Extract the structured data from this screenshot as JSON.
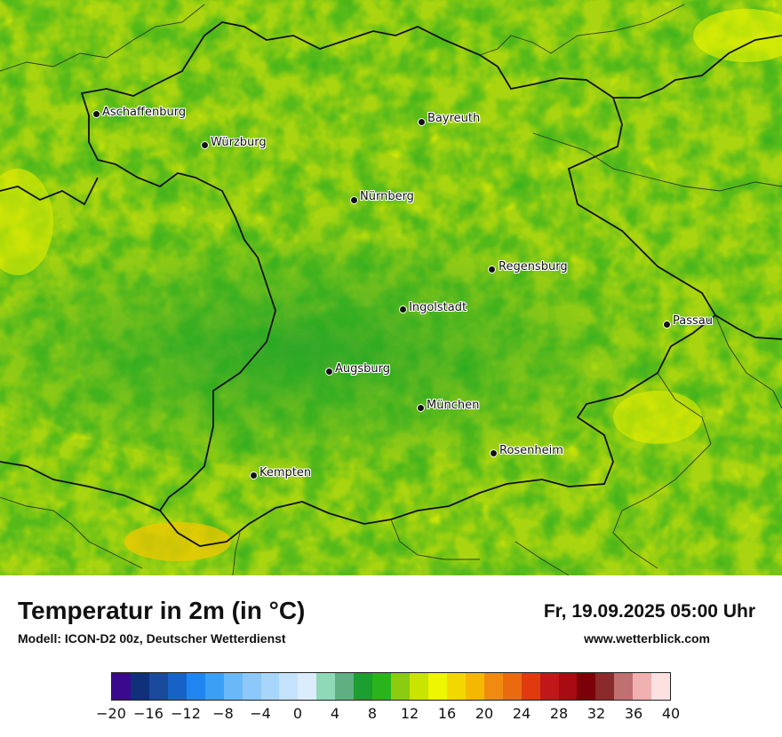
{
  "title": "Temperatur in 2m (in °C)",
  "model": "Modell: ICON-D2 00z, Deutscher Wetterdienst",
  "datetime": "Fr, 19.09.2025 05:00 Uhr",
  "website": "www.wetterblick.com",
  "legend": {
    "min": -20,
    "max": 40,
    "tick_labels": [
      "−20",
      "−16",
      "−12",
      "−8",
      "−4",
      "0",
      "4",
      "8",
      "12",
      "16",
      "20",
      "24",
      "28",
      "32",
      "36",
      "40"
    ],
    "colors": [
      "#3a0a8c",
      "#10307a",
      "#1a4a9c",
      "#1763c5",
      "#1f86f0",
      "#3aa0f5",
      "#6ab8f8",
      "#8cc8f9",
      "#a8d6fb",
      "#c4e2fc",
      "#dbecfd",
      "#8fd9b8",
      "#5faf82",
      "#1c9e30",
      "#2ab41c",
      "#8ccc10",
      "#c8e400",
      "#eef600",
      "#f2d800",
      "#f4b800",
      "#f08a10",
      "#ea6a10",
      "#e03a10",
      "#c01818",
      "#a80c12",
      "#7c0008",
      "#8a2a2a",
      "#c07070",
      "#f0b0b0",
      "#fde0e0"
    ]
  },
  "cities": [
    {
      "name": "Aschaffenburg"
    },
    {
      "name": "Würzburg"
    },
    {
      "name": "Bayreuth"
    },
    {
      "name": "Nürnberg"
    },
    {
      "name": "Regensburg"
    },
    {
      "name": "Ingolstadt"
    },
    {
      "name": "Passau"
    },
    {
      "name": "Augsburg"
    },
    {
      "name": "München"
    },
    {
      "name": "Rosenheim"
    },
    {
      "name": "Kempten"
    }
  ]
}
